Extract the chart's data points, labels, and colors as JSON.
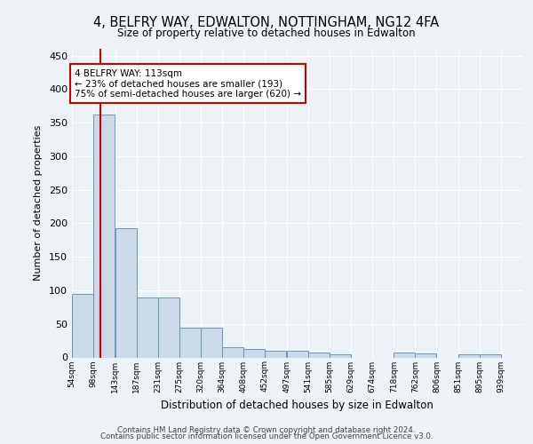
{
  "title1": "4, BELFRY WAY, EDWALTON, NOTTINGHAM, NG12 4FA",
  "title2": "Size of property relative to detached houses in Edwalton",
  "xlabel": "Distribution of detached houses by size in Edwalton",
  "ylabel": "Number of detached properties",
  "footer1": "Contains HM Land Registry data © Crown copyright and database right 2024.",
  "footer2": "Contains public sector information licensed under the Open Government Licence v3.0.",
  "annotation_line1": "4 BELFRY WAY: 113sqm",
  "annotation_line2": "← 23% of detached houses are smaller (193)",
  "annotation_line3": "75% of semi-detached houses are larger (620) →",
  "property_size": 113,
  "bar_left_edges": [
    54,
    98,
    143,
    187,
    231,
    275,
    320,
    364,
    408,
    452,
    497,
    541,
    585,
    629,
    674,
    718,
    762,
    806,
    851,
    895
  ],
  "bar_heights": [
    95,
    362,
    193,
    90,
    90,
    45,
    45,
    15,
    12,
    10,
    10,
    7,
    5,
    0,
    0,
    7,
    6,
    0,
    4,
    4
  ],
  "bin_width": 44,
  "bar_color": "#ccd9e8",
  "bar_edge_color": "#6699bb",
  "vline_color": "#cc0000",
  "vline_x": 113,
  "annotation_box_color": "#cc0000",
  "ylim": [
    0,
    460
  ],
  "yticks": [
    0,
    50,
    100,
    150,
    200,
    250,
    300,
    350,
    400,
    450
  ],
  "background_color": "#edf2f7",
  "plot_bg_color": "#edf2f7",
  "grid_color": "#ffffff",
  "tick_labels": [
    "54sqm",
    "98sqm",
    "143sqm",
    "187sqm",
    "231sqm",
    "275sqm",
    "320sqm",
    "364sqm",
    "408sqm",
    "452sqm",
    "497sqm",
    "541sqm",
    "585sqm",
    "629sqm",
    "674sqm",
    "718sqm",
    "762sqm",
    "806sqm",
    "851sqm",
    "895sqm",
    "939sqm"
  ]
}
